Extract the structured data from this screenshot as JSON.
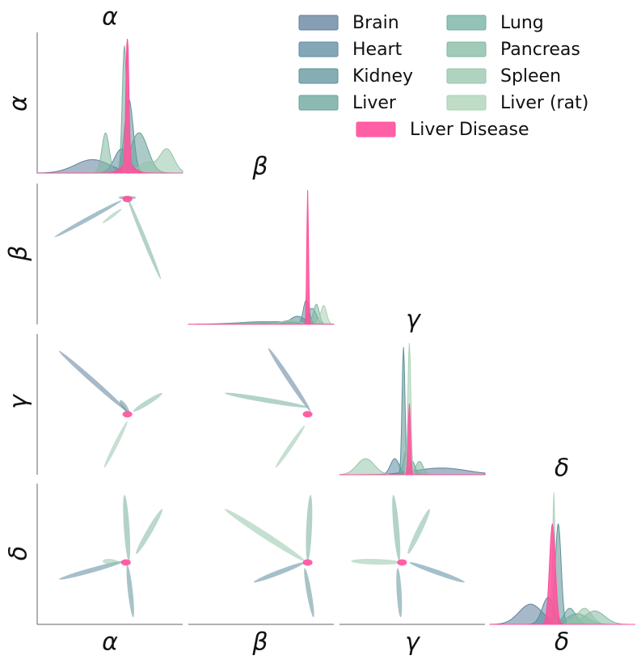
{
  "chart_data": {
    "type": "pairplot",
    "variables": [
      "α",
      "β",
      "γ",
      "δ"
    ],
    "legend_position": "top-right",
    "series": [
      {
        "name": "Brain",
        "color": "#5f7f9b"
      },
      {
        "name": "Heart",
        "color": "#5b8aa0"
      },
      {
        "name": "Kidney",
        "color": "#5e9198"
      },
      {
        "name": "Liver",
        "color": "#67a19a"
      },
      {
        "name": "Lung",
        "color": "#72ad9e"
      },
      {
        "name": "Pancreas",
        "color": "#83b8a2"
      },
      {
        "name": "Spleen",
        "color": "#96c4aa"
      },
      {
        "name": "Liver (rat)",
        "color": "#a9d0b4"
      },
      {
        "name": "Liver Disease",
        "color": "#ff4f9b"
      }
    ],
    "grid": false
  }
}
